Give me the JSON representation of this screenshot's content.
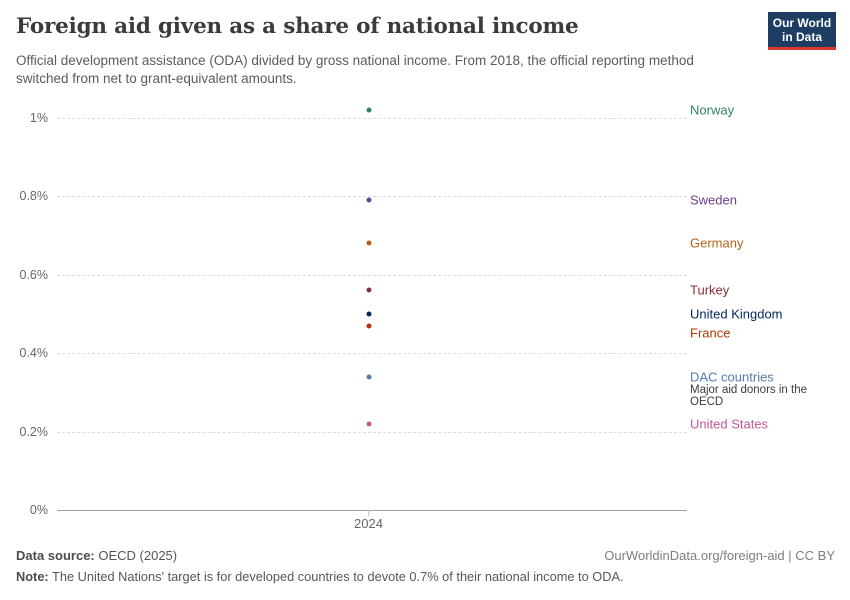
{
  "header": {
    "title": "Foreign aid given as a share of national income",
    "subtitle": "Official development assistance (ODA) divided by gross national income. From 2018, the official reporting method switched from net to grant-equivalent amounts.",
    "logo_line1": "Our World",
    "logo_line2": "in Data",
    "logo_bg_color": "#1d3d63",
    "logo_accent_color": "#dc352c"
  },
  "chart_data": {
    "type": "scatter",
    "title": "Foreign aid given as a share of national income",
    "x_label": "2024",
    "x_value": 2024,
    "ylabel": "",
    "ylim": [
      0,
      1.05
    ],
    "grid": "horizontal dashed",
    "legend_position": "right edge entity labels",
    "yticks": [
      {
        "value": 0,
        "label": "0%"
      },
      {
        "value": 0.2,
        "label": "0.2%"
      },
      {
        "value": 0.4,
        "label": "0.4%"
      },
      {
        "value": 0.6,
        "label": "0.6%"
      },
      {
        "value": 0.8,
        "label": "0.8%"
      },
      {
        "value": 1.0,
        "label": "1%"
      }
    ],
    "points": [
      {
        "name": "Norway",
        "value": 1.02,
        "color": "#2c8465"
      },
      {
        "name": "Sweden",
        "value": 0.79,
        "color": "#6d3e91"
      },
      {
        "name": "Germany",
        "value": 0.68,
        "color": "#b16214"
      },
      {
        "name": "Turkey",
        "value": 0.56,
        "color": "#883039"
      },
      {
        "name": "United Kingdom",
        "value": 0.5,
        "color": "#00295b"
      },
      {
        "name": "France",
        "value": 0.47,
        "color": "#b13507"
      },
      {
        "name": "DAC countries",
        "value": 0.34,
        "color": "#577ca9",
        "note": "Major aid donors in the OECD"
      },
      {
        "name": "United States",
        "value": 0.22,
        "color": "#c3588c"
      }
    ]
  },
  "footer": {
    "source_label": "Data source:",
    "source_text": " OECD (2025)",
    "attribution": "OurWorldinData.org/foreign-aid | CC BY",
    "note_label": "Note:",
    "note_text": " The United Nations' target is for developed countries to devote 0.7% of their national income to ODA."
  }
}
